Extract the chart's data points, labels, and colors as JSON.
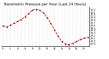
{
  "title": "Barometric Pressure per Hour (Last 24 Hours)",
  "hours": [
    0,
    1,
    2,
    3,
    4,
    5,
    6,
    7,
    8,
    9,
    10,
    11,
    12,
    13,
    14,
    15,
    16,
    17,
    18,
    19,
    20,
    21,
    22,
    23
  ],
  "pressure": [
    29.58,
    29.54,
    29.6,
    29.68,
    29.75,
    29.82,
    29.92,
    30.05,
    30.18,
    30.22,
    30.18,
    30.08,
    29.9,
    29.68,
    29.42,
    29.18,
    28.98,
    28.88,
    28.86,
    28.9,
    28.98,
    29.05,
    29.1,
    29.14
  ],
  "line_color": "#ff0000",
  "marker_color": "#000000",
  "bg_color": "#ffffff",
  "grid_color": "#b0b0b0",
  "ylim_min": 28.8,
  "ylim_max": 30.3,
  "yticks": [
    28.9,
    29.0,
    29.1,
    29.2,
    29.3,
    29.4,
    29.5,
    29.6,
    29.7,
    29.8,
    29.9,
    30.0,
    30.1,
    30.2
  ],
  "title_fontsize": 3.8,
  "tick_fontsize": 2.5,
  "label_fontsize": 3.0,
  "figwidth": 1.6,
  "figheight": 0.87,
  "dpi": 100
}
